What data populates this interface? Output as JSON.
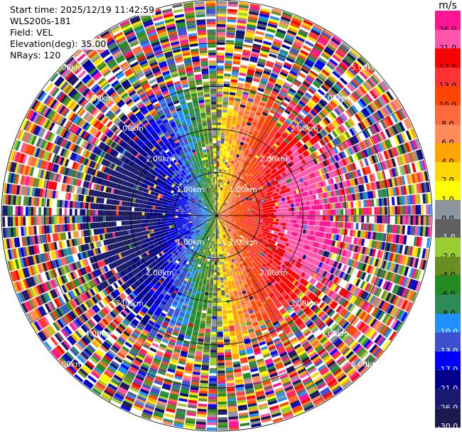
{
  "info": {
    "start_time": "Start time: 2025/12/19 11:42:59",
    "station": "WLS200s-181",
    "field": "Field: VEL",
    "elevation": "Elevation(deg): 35.00",
    "nrays": "NRays: 120"
  },
  "chart_data": {
    "type": "heatmap",
    "projection": "polar-ppi",
    "field": "VEL",
    "units": "m/s",
    "rays": 120,
    "range_km": [
      0,
      5
    ],
    "ring_labels": [
      "1.00km",
      "2.00km",
      "3.00km",
      "4.00km",
      "5.00km"
    ],
    "valid_range_km": 3.0,
    "pattern": {
      "description_values": "radial velocity increasing from east, decreasing to west",
      "east_peak_ms": 26.0,
      "west_peak_ms": -26.0
    },
    "colorbar": {
      "title": "m/s",
      "ticks": [
        "26.0",
        "21.0",
        "17.0",
        "13.0",
        "10.0",
        "8.0",
        "6.0",
        "4.0",
        "2.0",
        "1.0",
        "0.0",
        "-1.0",
        "-2.0",
        "-4.0",
        "-6.0",
        "-8.0",
        "-10.0",
        "-13.0",
        "-17.0",
        "-21.0",
        "-26.0",
        "-30.0"
      ],
      "colors": [
        "#ff1493",
        "#ff55aa",
        "#ff0000",
        "#ff3333",
        "#ff4500",
        "#ff6a3c",
        "#ff8c5a",
        "#ffa500",
        "#ffd700",
        "#ffff00",
        "#8c96a0",
        "#606060",
        "#9acd32",
        "#6b8e23",
        "#228b22",
        "#2e8b57",
        "#1e90ff",
        "#3c50d0",
        "#0000ff",
        "#00008b",
        "#191970",
        "#1a1a50"
      ]
    }
  }
}
